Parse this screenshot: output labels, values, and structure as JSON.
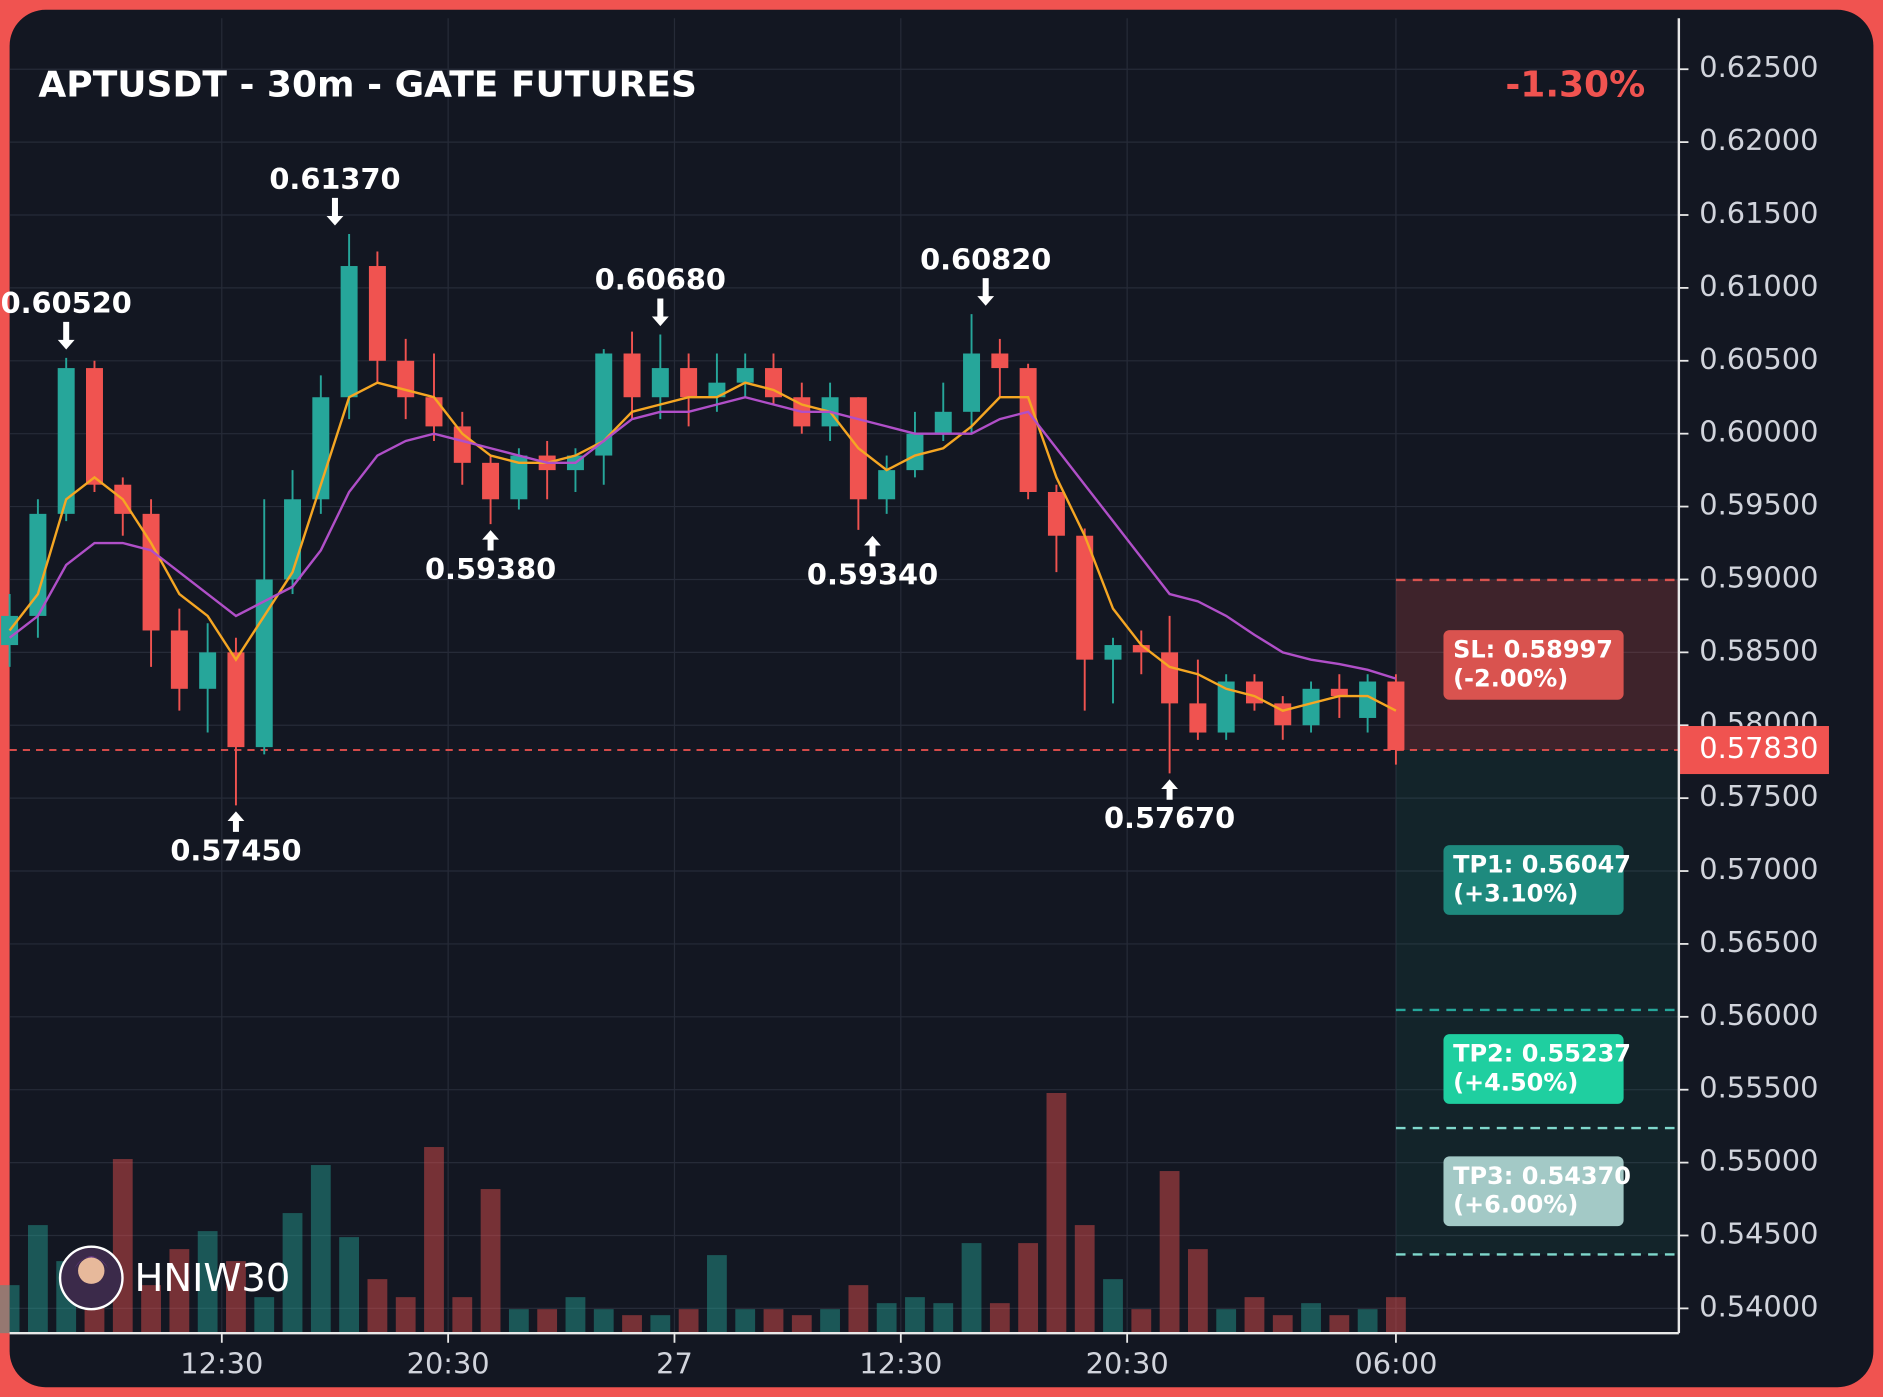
{
  "chart_data": {
    "type": "candlestick",
    "title": "APTUSDT - 30m - GATE FUTURES",
    "change": "-1.30%",
    "watermark": "HNIW30",
    "up_color": "#26a69a",
    "down_color": "#f05350",
    "x": [
      0,
      2,
      4,
      6,
      8,
      10,
      12,
      14,
      16,
      18,
      20,
      22,
      24,
      26,
      28,
      30,
      32,
      34,
      36,
      38,
      40,
      42,
      44,
      46,
      48,
      50,
      52,
      54,
      56,
      58,
      60,
      62,
      64,
      66,
      68,
      70,
      72,
      74,
      76,
      78,
      80,
      82,
      84,
      86,
      88,
      90,
      92,
      94,
      96,
      98
    ],
    "open": [
      0.5855,
      0.5875,
      0.5945,
      0.6045,
      0.5965,
      0.5945,
      0.5865,
      0.5825,
      0.585,
      0.5785,
      0.59,
      0.5955,
      0.6025,
      0.6115,
      0.605,
      0.6025,
      0.6005,
      0.598,
      0.5955,
      0.5985,
      0.5975,
      0.5985,
      0.6055,
      0.6025,
      0.6045,
      0.6025,
      0.6035,
      0.6045,
      0.6025,
      0.6005,
      0.6025,
      0.5955,
      0.5975,
      0.6,
      0.6015,
      0.6055,
      0.6045,
      0.596,
      0.593,
      0.5845,
      0.5855,
      0.585,
      0.5815,
      0.5795,
      0.583,
      0.5815,
      0.58,
      0.5825,
      0.5805,
      0.583
    ],
    "high": [
      0.589,
      0.5955,
      0.6052,
      0.605,
      0.597,
      0.5955,
      0.588,
      0.587,
      0.586,
      0.5955,
      0.5975,
      0.604,
      0.6137,
      0.6125,
      0.6065,
      0.6055,
      0.6015,
      0.5985,
      0.599,
      0.5995,
      0.599,
      0.6058,
      0.607,
      0.6068,
      0.6055,
      0.6055,
      0.6055,
      0.6055,
      0.6035,
      0.6035,
      0.6025,
      0.5985,
      0.6015,
      0.6035,
      0.6082,
      0.6065,
      0.6048,
      0.5965,
      0.5935,
      0.586,
      0.5865,
      0.5875,
      0.5845,
      0.5835,
      0.5835,
      0.582,
      0.583,
      0.5835,
      0.5835,
      0.5835
    ],
    "low": [
      0.584,
      0.586,
      0.594,
      0.596,
      0.593,
      0.584,
      0.581,
      0.5795,
      0.5745,
      0.578,
      0.589,
      0.5945,
      0.601,
      0.6035,
      0.601,
      0.5995,
      0.5965,
      0.5938,
      0.5948,
      0.5955,
      0.596,
      0.5965,
      0.601,
      0.601,
      0.6005,
      0.6015,
      0.6025,
      0.602,
      0.6,
      0.5995,
      0.5934,
      0.5945,
      0.597,
      0.5995,
      0.6,
      0.6025,
      0.5955,
      0.5905,
      0.581,
      0.5815,
      0.5835,
      0.5767,
      0.579,
      0.579,
      0.581,
      0.579,
      0.5795,
      0.5805,
      0.5795,
      0.5773
    ],
    "close": [
      0.5875,
      0.5945,
      0.6045,
      0.5965,
      0.5945,
      0.5865,
      0.5825,
      0.585,
      0.5785,
      0.59,
      0.5955,
      0.6025,
      0.6115,
      0.605,
      0.6025,
      0.6005,
      0.598,
      0.5955,
      0.5985,
      0.5975,
      0.5985,
      0.6055,
      0.6025,
      0.6045,
      0.6025,
      0.6035,
      0.6045,
      0.6025,
      0.6005,
      0.6025,
      0.5955,
      0.5975,
      0.6,
      0.6015,
      0.6055,
      0.6045,
      0.596,
      0.593,
      0.5845,
      0.5855,
      0.585,
      0.5815,
      0.5795,
      0.583,
      0.5815,
      0.58,
      0.5825,
      0.582,
      0.583,
      0.5783
    ],
    "ma": [
      {
        "color": "#f5a623",
        "values": [
          0.5865,
          0.589,
          0.5955,
          0.597,
          0.5955,
          0.5925,
          0.589,
          0.5875,
          0.5845,
          0.5875,
          0.5905,
          0.5965,
          0.6025,
          0.6035,
          0.603,
          0.6025,
          0.6,
          0.5985,
          0.598,
          0.598,
          0.5985,
          0.5995,
          0.6015,
          0.602,
          0.6025,
          0.6025,
          0.6035,
          0.603,
          0.602,
          0.6015,
          0.599,
          0.5975,
          0.5985,
          0.599,
          0.6005,
          0.6025,
          0.6025,
          0.597,
          0.593,
          0.588,
          0.5855,
          0.584,
          0.5835,
          0.5825,
          0.582,
          0.581,
          0.5815,
          0.582,
          0.582,
          0.581
        ]
      },
      {
        "color": "#b04fc8",
        "values": [
          0.586,
          0.5875,
          0.591,
          0.5925,
          0.5925,
          0.592,
          0.5905,
          0.589,
          0.5875,
          0.5885,
          0.5895,
          0.592,
          0.596,
          0.5985,
          0.5995,
          0.6,
          0.5995,
          0.599,
          0.5985,
          0.598,
          0.598,
          0.5995,
          0.601,
          0.6015,
          0.6015,
          0.602,
          0.6025,
          0.602,
          0.6015,
          0.6015,
          0.601,
          0.6005,
          0.6,
          0.6,
          0.6,
          0.601,
          0.6015,
          0.599,
          0.5965,
          0.594,
          0.5915,
          0.589,
          0.5885,
          0.5875,
          0.5862,
          0.585,
          0.5845,
          0.5842,
          0.5838,
          0.5832
        ]
      }
    ],
    "volume": [
      40,
      90,
      60,
      30,
      145,
      40,
      70,
      85,
      60,
      30,
      100,
      140,
      80,
      45,
      30,
      155,
      30,
      120,
      20,
      20,
      30,
      20,
      15,
      15,
      20,
      65,
      20,
      20,
      15,
      20,
      40,
      25,
      30,
      25,
      75,
      25,
      75,
      200,
      90,
      45,
      20,
      135,
      70,
      20,
      30,
      15,
      25,
      15,
      20,
      30
    ],
    "volume_lim": [
      0,
      250
    ],
    "xlim": [
      0,
      118
    ],
    "xticks": [
      {
        "value": 15,
        "label": "12:30"
      },
      {
        "value": 31,
        "label": "20:30"
      },
      {
        "value": 47,
        "label": "27"
      },
      {
        "value": 63,
        "label": "12:30"
      },
      {
        "value": 79,
        "label": "20:30"
      },
      {
        "value": 98,
        "label": "06:00"
      }
    ],
    "ylim": [
      0.5383,
      0.6285
    ],
    "yticks": [
      {
        "value": 0.54,
        "label": "0.54000"
      },
      {
        "value": 0.545,
        "label": "0.54500"
      },
      {
        "value": 0.55,
        "label": "0.55000"
      },
      {
        "value": 0.555,
        "label": "0.55500"
      },
      {
        "value": 0.56,
        "label": "0.56000"
      },
      {
        "value": 0.565,
        "label": "0.56500"
      },
      {
        "value": 0.57,
        "label": "0.57000"
      },
      {
        "value": 0.575,
        "label": "0.57500"
      },
      {
        "value": 0.58,
        "label": "0.58000"
      },
      {
        "value": 0.585,
        "label": "0.58500"
      },
      {
        "value": 0.59,
        "label": "0.59000"
      },
      {
        "value": 0.595,
        "label": "0.59500"
      },
      {
        "value": 0.6,
        "label": "0.60000"
      },
      {
        "value": 0.605,
        "label": "0.60500"
      },
      {
        "value": 0.61,
        "label": "0.61000"
      },
      {
        "value": 0.615,
        "label": "0.61500"
      },
      {
        "value": 0.62,
        "label": "0.62000"
      },
      {
        "value": 0.625,
        "label": "0.62500"
      }
    ],
    "grid": true,
    "annotations": [
      {
        "x": 4,
        "value": 0.6052,
        "label": "0.60520",
        "position": "above"
      },
      {
        "x": 16,
        "value": 0.5745,
        "label": "0.57450",
        "position": "below"
      },
      {
        "x": 23,
        "value": 0.6137,
        "label": "0.61370",
        "position": "above"
      },
      {
        "x": 34,
        "value": 0.5938,
        "label": "0.59380",
        "position": "below"
      },
      {
        "x": 46,
        "value": 0.6068,
        "label": "0.60680",
        "position": "above"
      },
      {
        "x": 61,
        "value": 0.5934,
        "label": "0.59340",
        "position": "below"
      },
      {
        "x": 69,
        "value": 0.6082,
        "label": "0.60820",
        "position": "above"
      },
      {
        "x": 82,
        "value": 0.5767,
        "label": "0.57670",
        "position": "below"
      }
    ],
    "zone_start": 98,
    "entry": {
      "value": 0.5783,
      "label": "0.57830",
      "color": "#f05350"
    },
    "stop": {
      "value": 0.58997,
      "label": "SL: 0.58997",
      "note": "(-2.00%)",
      "color": "#d9534f"
    },
    "targets": [
      {
        "value": 0.56047,
        "label": "TP1: 0.56047",
        "note": "(+3.10%)",
        "color": "#1e8a7e"
      },
      {
        "value": 0.55237,
        "label": "TP2: 0.55237",
        "note": "(+4.50%)",
        "color": "#1fcfa0"
      },
      {
        "value": 0.5437,
        "label": "TP3: 0.54370",
        "note": "(+6.00%)",
        "color": "#a3c9c6"
      }
    ]
  }
}
